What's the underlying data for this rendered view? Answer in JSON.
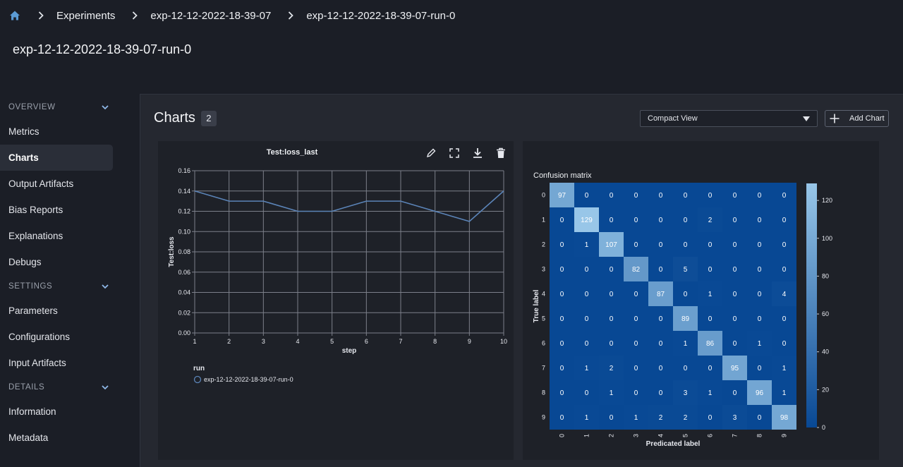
{
  "breadcrumb": {
    "home_icon": "home-icon",
    "items": [
      "Experiments",
      "exp-12-12-2022-18-39-07",
      "exp-12-12-2022-18-39-07-run-0"
    ]
  },
  "page_title": "exp-12-12-2022-18-39-07-run-0",
  "sidebar": {
    "sections": [
      {
        "label": "OVERVIEW",
        "items": [
          "Metrics",
          "Charts",
          "Output Artifacts",
          "Bias Reports",
          "Explanations",
          "Debugs"
        ]
      },
      {
        "label": "SETTINGS",
        "items": [
          "Parameters",
          "Configurations",
          "Input Artifacts"
        ]
      },
      {
        "label": "DETAILS",
        "items": [
          "Information",
          "Metadata"
        ]
      }
    ],
    "active": "Charts"
  },
  "main": {
    "title": "Charts",
    "count": "2",
    "view_select": "Compact View",
    "add_chart": "Add Chart"
  },
  "colors": {
    "accent_blue": "#5b9bd5",
    "line_series": "#5b84b8",
    "background": "#1b1e26",
    "panel": "#252830"
  },
  "chart_data": [
    {
      "type": "line",
      "title": "Test:loss_last",
      "xlabel": "step",
      "ylabel": "Test:loss",
      "x": [
        1,
        2,
        3,
        4,
        5,
        6,
        7,
        8,
        9,
        10
      ],
      "series": [
        {
          "name": "exp-12-12-2022-18-39-07-run-0",
          "values": [
            0.14,
            0.13,
            0.13,
            0.12,
            0.12,
            0.13,
            0.13,
            0.12,
            0.11,
            0.14
          ]
        }
      ],
      "ylim": [
        0,
        0.16
      ],
      "yticks": [
        "0.16",
        "0.14",
        "0.12",
        "0.10",
        "0.08",
        "0.06",
        "0.04",
        "0.02",
        "0.00"
      ],
      "xticks": [
        "1",
        "2",
        "3",
        "4",
        "5",
        "6",
        "7",
        "8",
        "9",
        "10"
      ],
      "legend_title": "run",
      "legend_position": "bottom-left",
      "grid": true
    },
    {
      "type": "heatmap",
      "title": "Confusion matrix",
      "xlabel": "Predicated label",
      "ylabel": "True label",
      "labels": [
        "0",
        "1",
        "2",
        "3",
        "4",
        "5",
        "6",
        "7",
        "8",
        "9"
      ],
      "matrix": [
        [
          97,
          0,
          0,
          0,
          0,
          0,
          0,
          0,
          0,
          0
        ],
        [
          0,
          129,
          0,
          0,
          0,
          0,
          2,
          0,
          0,
          0
        ],
        [
          0,
          1,
          107,
          0,
          0,
          0,
          0,
          0,
          0,
          0
        ],
        [
          0,
          0,
          0,
          82,
          0,
          5,
          0,
          0,
          0,
          0
        ],
        [
          0,
          0,
          0,
          0,
          87,
          0,
          1,
          0,
          0,
          4
        ],
        [
          0,
          0,
          0,
          0,
          0,
          89,
          0,
          0,
          0,
          0
        ],
        [
          0,
          0,
          0,
          0,
          0,
          1,
          86,
          0,
          1,
          0
        ],
        [
          0,
          1,
          2,
          0,
          0,
          0,
          0,
          95,
          0,
          1
        ],
        [
          0,
          0,
          1,
          0,
          0,
          3,
          1,
          0,
          96,
          1
        ],
        [
          0,
          1,
          0,
          1,
          2,
          2,
          0,
          3,
          0,
          98
        ]
      ],
      "colorbar_ticks": [
        "120",
        "100",
        "80",
        "60",
        "40",
        "20",
        "0"
      ],
      "colorbar_range": [
        0,
        129
      ],
      "colormap": "Blues"
    }
  ]
}
